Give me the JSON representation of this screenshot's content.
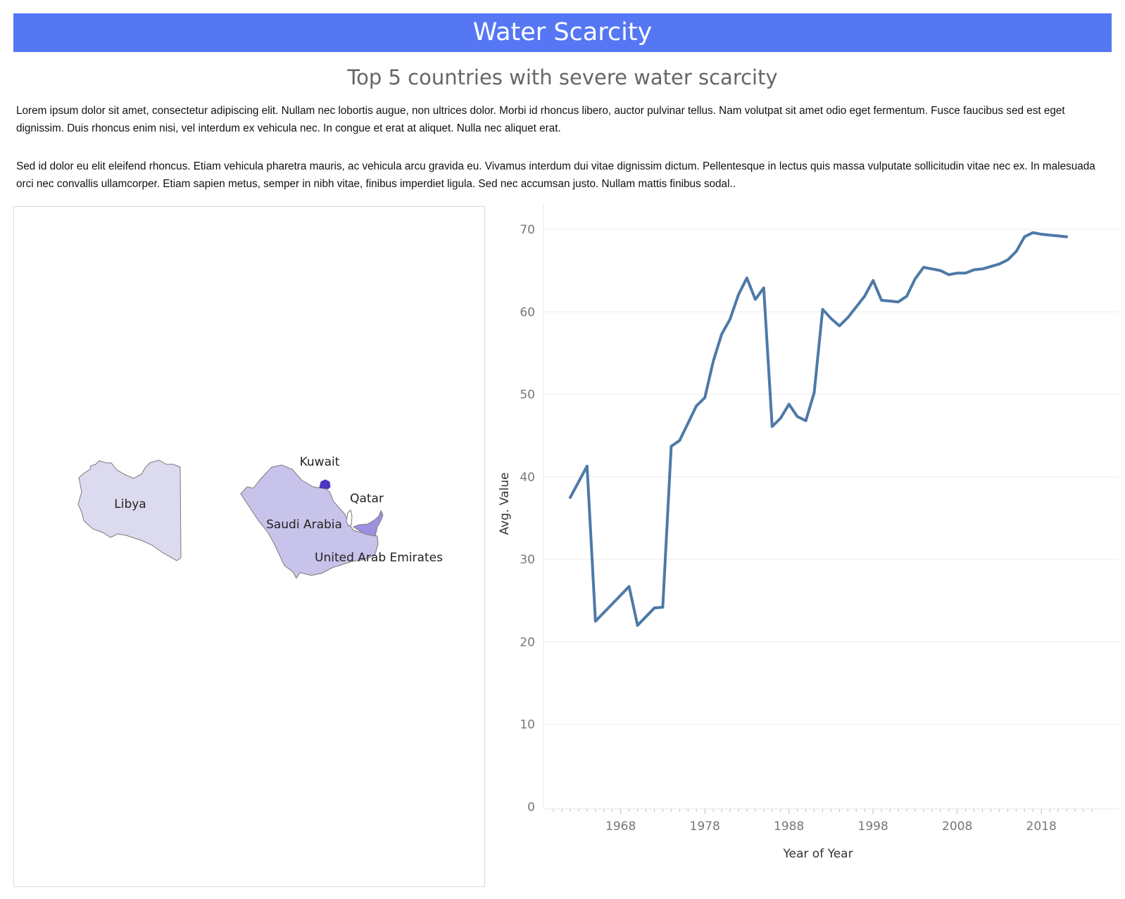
{
  "dashboard": {
    "title": "Water Scarcity",
    "subtitle": "Top 5 countries with severe water scarcity",
    "paragraphs": [
      "Lorem ipsum dolor sit amet, consectetur adipiscing elit. Nullam nec lobortis augue, non ultrices dolor. Morbi id rhoncus libero, auctor pulvinar tellus. Nam volutpat sit amet odio eget fermentum. Fusce faucibus sed est eget dignissim. Duis rhoncus enim nisi, vel interdum ex vehicula nec. In congue et erat at aliquet. Nulla nec aliquet erat.",
      "Sed id dolor eu elit eleifend rhoncus. Etiam vehicula pharetra mauris, ac vehicula arcu gravida eu. Vivamus interdum dui vitae dignissim dictum. Pellentesque in lectus quis massa vulputate sollicitudin vitae nec ex. In malesuada orci nec convallis ullamcorper. Etiam sapien metus, semper in nibh vitae, finibus imperdiet ligula. Sed nec accumsan justo. Nullam mattis finibus sodal.."
    ]
  },
  "map": {
    "countries": [
      {
        "name": "Libya",
        "color": "#dcdaef"
      },
      {
        "name": "Saudi Arabia",
        "color": "#c7c3ea"
      },
      {
        "name": "Kuwait",
        "color": "#4b37c2"
      },
      {
        "name": "Qatar",
        "color": "#ffffff"
      },
      {
        "name": "United Arab Emirates",
        "color": "#9c90e0"
      }
    ]
  },
  "chart_data": {
    "type": "line",
    "xlabel": "Year of Year",
    "ylabel": "Avg. Value",
    "xticks": [
      1968,
      1978,
      1988,
      1998,
      2008,
      2018
    ],
    "yticks": [
      0,
      10,
      20,
      30,
      40,
      50,
      60,
      70
    ],
    "xlim": [
      1959,
      2025
    ],
    "ylim": [
      0,
      73
    ],
    "grid": "horizontal",
    "line_color": "#4e79a7",
    "series": [
      {
        "x": [
          1962,
          1964,
          1965,
          1967,
          1969,
          1970,
          1972,
          1973,
          1974,
          1975,
          1976,
          1977,
          1978,
          1979,
          1980,
          1981,
          1982,
          1983,
          1984,
          1985,
          1986,
          1987,
          1988,
          1989,
          1990,
          1991,
          1992,
          1993,
          1994,
          1995,
          1996,
          1997,
          1998,
          1999,
          2000,
          2001,
          2002,
          2003,
          2004,
          2005,
          2006,
          2007,
          2008,
          2009,
          2010,
          2011,
          2012,
          2013,
          2014,
          2015,
          2016,
          2017,
          2018,
          2019,
          2020,
          2021
        ],
        "y": [
          37.5,
          41.3,
          22.5,
          24.6,
          26.7,
          22.0,
          24.1,
          24.2,
          43.7,
          44.4,
          46.5,
          48.6,
          49.6,
          54.0,
          57.3,
          59.1,
          62.1,
          64.1,
          61.5,
          62.9,
          46.1,
          47.1,
          48.8,
          47.3,
          46.8,
          50.2,
          60.3,
          59.2,
          58.3,
          59.3,
          60.6,
          61.9,
          63.8,
          61.4,
          61.3,
          61.2,
          61.9,
          64.0,
          65.4,
          65.2,
          65.0,
          64.5,
          64.7,
          64.7,
          65.1,
          65.2,
          65.5,
          65.8,
          66.3,
          67.3,
          69.1,
          69.6,
          69.4,
          69.3,
          69.2,
          69.1
        ]
      }
    ]
  }
}
